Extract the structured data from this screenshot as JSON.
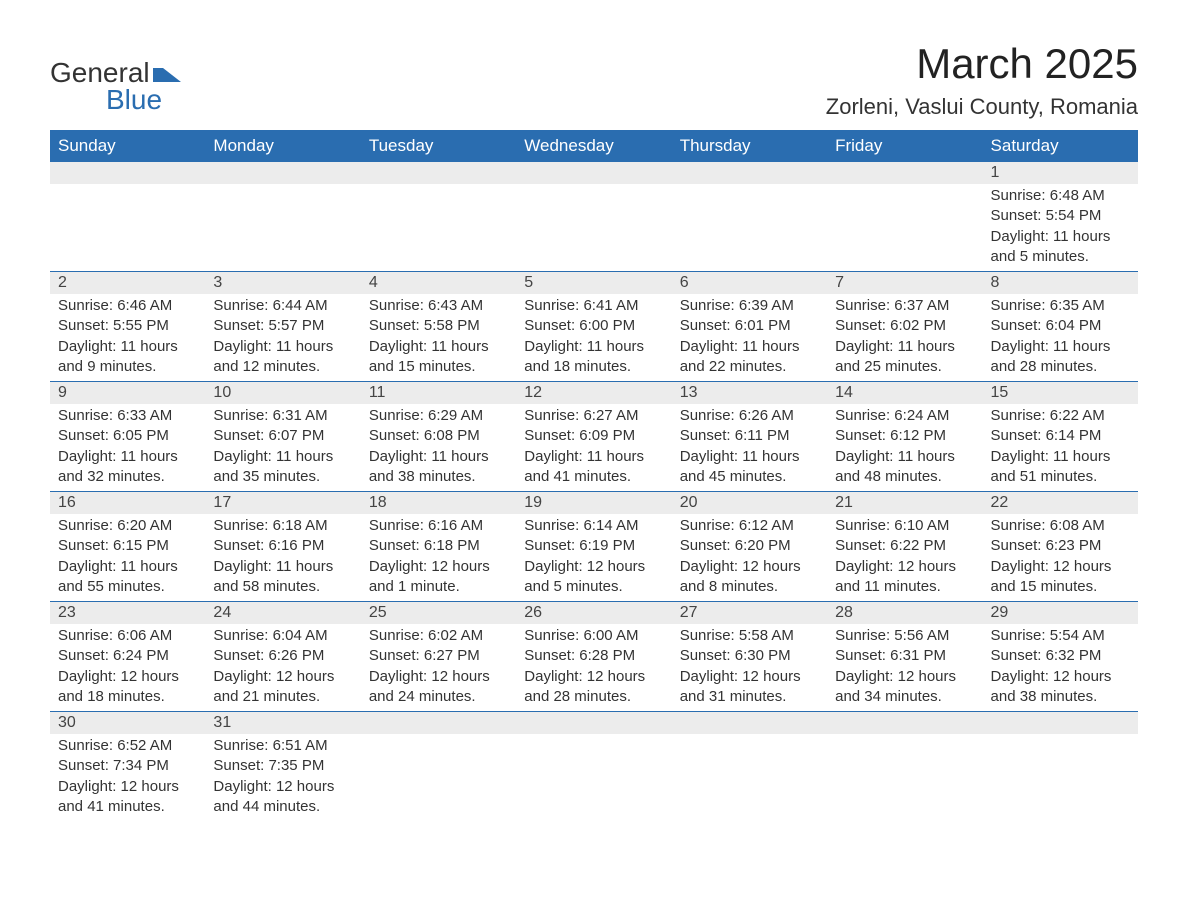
{
  "brand": {
    "name1": "General",
    "name2": "Blue",
    "color_primary": "#2a6db0",
    "color_text": "#333333"
  },
  "title": "March 2025",
  "location": "Zorleni, Vaslui County, Romania",
  "day_headers": [
    "Sunday",
    "Monday",
    "Tuesday",
    "Wednesday",
    "Thursday",
    "Friday",
    "Saturday"
  ],
  "colors": {
    "header_bg": "#2a6db0",
    "header_fg": "#ffffff",
    "row_divider": "#2a6db0",
    "daynum_bg": "#ececec",
    "page_bg": "#ffffff"
  },
  "weeks": [
    [
      null,
      null,
      null,
      null,
      null,
      null,
      {
        "n": "1",
        "sunrise": "Sunrise: 6:48 AM",
        "sunset": "Sunset: 5:54 PM",
        "daylight": "Daylight: 11 hours and 5 minutes."
      }
    ],
    [
      {
        "n": "2",
        "sunrise": "Sunrise: 6:46 AM",
        "sunset": "Sunset: 5:55 PM",
        "daylight": "Daylight: 11 hours and 9 minutes."
      },
      {
        "n": "3",
        "sunrise": "Sunrise: 6:44 AM",
        "sunset": "Sunset: 5:57 PM",
        "daylight": "Daylight: 11 hours and 12 minutes."
      },
      {
        "n": "4",
        "sunrise": "Sunrise: 6:43 AM",
        "sunset": "Sunset: 5:58 PM",
        "daylight": "Daylight: 11 hours and 15 minutes."
      },
      {
        "n": "5",
        "sunrise": "Sunrise: 6:41 AM",
        "sunset": "Sunset: 6:00 PM",
        "daylight": "Daylight: 11 hours and 18 minutes."
      },
      {
        "n": "6",
        "sunrise": "Sunrise: 6:39 AM",
        "sunset": "Sunset: 6:01 PM",
        "daylight": "Daylight: 11 hours and 22 minutes."
      },
      {
        "n": "7",
        "sunrise": "Sunrise: 6:37 AM",
        "sunset": "Sunset: 6:02 PM",
        "daylight": "Daylight: 11 hours and 25 minutes."
      },
      {
        "n": "8",
        "sunrise": "Sunrise: 6:35 AM",
        "sunset": "Sunset: 6:04 PM",
        "daylight": "Daylight: 11 hours and 28 minutes."
      }
    ],
    [
      {
        "n": "9",
        "sunrise": "Sunrise: 6:33 AM",
        "sunset": "Sunset: 6:05 PM",
        "daylight": "Daylight: 11 hours and 32 minutes."
      },
      {
        "n": "10",
        "sunrise": "Sunrise: 6:31 AM",
        "sunset": "Sunset: 6:07 PM",
        "daylight": "Daylight: 11 hours and 35 minutes."
      },
      {
        "n": "11",
        "sunrise": "Sunrise: 6:29 AM",
        "sunset": "Sunset: 6:08 PM",
        "daylight": "Daylight: 11 hours and 38 minutes."
      },
      {
        "n": "12",
        "sunrise": "Sunrise: 6:27 AM",
        "sunset": "Sunset: 6:09 PM",
        "daylight": "Daylight: 11 hours and 41 minutes."
      },
      {
        "n": "13",
        "sunrise": "Sunrise: 6:26 AM",
        "sunset": "Sunset: 6:11 PM",
        "daylight": "Daylight: 11 hours and 45 minutes."
      },
      {
        "n": "14",
        "sunrise": "Sunrise: 6:24 AM",
        "sunset": "Sunset: 6:12 PM",
        "daylight": "Daylight: 11 hours and 48 minutes."
      },
      {
        "n": "15",
        "sunrise": "Sunrise: 6:22 AM",
        "sunset": "Sunset: 6:14 PM",
        "daylight": "Daylight: 11 hours and 51 minutes."
      }
    ],
    [
      {
        "n": "16",
        "sunrise": "Sunrise: 6:20 AM",
        "sunset": "Sunset: 6:15 PM",
        "daylight": "Daylight: 11 hours and 55 minutes."
      },
      {
        "n": "17",
        "sunrise": "Sunrise: 6:18 AM",
        "sunset": "Sunset: 6:16 PM",
        "daylight": "Daylight: 11 hours and 58 minutes."
      },
      {
        "n": "18",
        "sunrise": "Sunrise: 6:16 AM",
        "sunset": "Sunset: 6:18 PM",
        "daylight": "Daylight: 12 hours and 1 minute."
      },
      {
        "n": "19",
        "sunrise": "Sunrise: 6:14 AM",
        "sunset": "Sunset: 6:19 PM",
        "daylight": "Daylight: 12 hours and 5 minutes."
      },
      {
        "n": "20",
        "sunrise": "Sunrise: 6:12 AM",
        "sunset": "Sunset: 6:20 PM",
        "daylight": "Daylight: 12 hours and 8 minutes."
      },
      {
        "n": "21",
        "sunrise": "Sunrise: 6:10 AM",
        "sunset": "Sunset: 6:22 PM",
        "daylight": "Daylight: 12 hours and 11 minutes."
      },
      {
        "n": "22",
        "sunrise": "Sunrise: 6:08 AM",
        "sunset": "Sunset: 6:23 PM",
        "daylight": "Daylight: 12 hours and 15 minutes."
      }
    ],
    [
      {
        "n": "23",
        "sunrise": "Sunrise: 6:06 AM",
        "sunset": "Sunset: 6:24 PM",
        "daylight": "Daylight: 12 hours and 18 minutes."
      },
      {
        "n": "24",
        "sunrise": "Sunrise: 6:04 AM",
        "sunset": "Sunset: 6:26 PM",
        "daylight": "Daylight: 12 hours and 21 minutes."
      },
      {
        "n": "25",
        "sunrise": "Sunrise: 6:02 AM",
        "sunset": "Sunset: 6:27 PM",
        "daylight": "Daylight: 12 hours and 24 minutes."
      },
      {
        "n": "26",
        "sunrise": "Sunrise: 6:00 AM",
        "sunset": "Sunset: 6:28 PM",
        "daylight": "Daylight: 12 hours and 28 minutes."
      },
      {
        "n": "27",
        "sunrise": "Sunrise: 5:58 AM",
        "sunset": "Sunset: 6:30 PM",
        "daylight": "Daylight: 12 hours and 31 minutes."
      },
      {
        "n": "28",
        "sunrise": "Sunrise: 5:56 AM",
        "sunset": "Sunset: 6:31 PM",
        "daylight": "Daylight: 12 hours and 34 minutes."
      },
      {
        "n": "29",
        "sunrise": "Sunrise: 5:54 AM",
        "sunset": "Sunset: 6:32 PM",
        "daylight": "Daylight: 12 hours and 38 minutes."
      }
    ],
    [
      {
        "n": "30",
        "sunrise": "Sunrise: 6:52 AM",
        "sunset": "Sunset: 7:34 PM",
        "daylight": "Daylight: 12 hours and 41 minutes."
      },
      {
        "n": "31",
        "sunrise": "Sunrise: 6:51 AM",
        "sunset": "Sunset: 7:35 PM",
        "daylight": "Daylight: 12 hours and 44 minutes."
      },
      null,
      null,
      null,
      null,
      null
    ]
  ]
}
